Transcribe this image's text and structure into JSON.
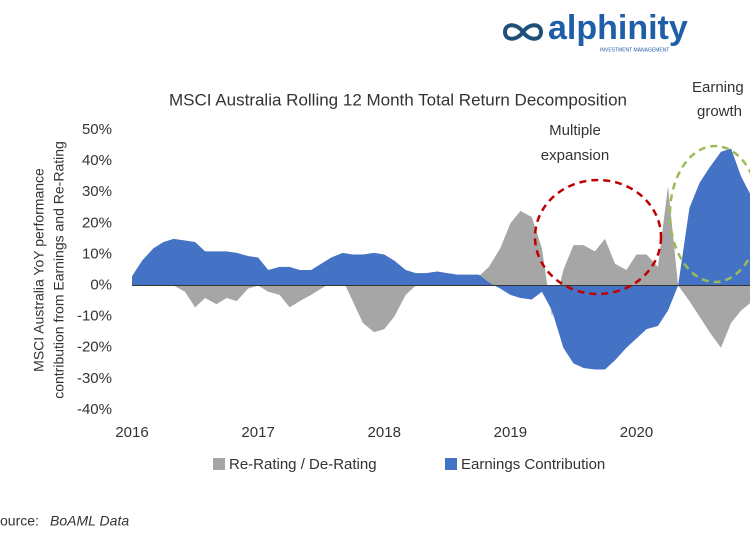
{
  "chart_data": {
    "type": "area",
    "logo": "alphinity",
    "logo_subtitle": "INVESTMENT MANAGEMENT",
    "title": "MSCI Australia Rolling 12 Month Total Return Decomposition",
    "y_label": [
      "MSCI Australia YoY performance",
      "contribution from Earnings and Re-Rating"
    ],
    "annotations": [
      {
        "lines": [
          "Multiple",
          "expansion"
        ],
        "color": "#c00000"
      },
      {
        "lines": [
          "Earning",
          "growth"
        ],
        "color": "#9bbb59"
      }
    ],
    "source_label": "ource:",
    "source": "BoAML Data",
    "x": [
      2016,
      2016.08,
      2016.17,
      2016.25,
      2016.33,
      2016.42,
      2016.5,
      2016.58,
      2016.67,
      2016.75,
      2016.83,
      2016.92,
      2017,
      2017.08,
      2017.17,
      2017.25,
      2017.33,
      2017.42,
      2017.5,
      2017.58,
      2017.67,
      2017.75,
      2017.83,
      2017.92,
      2018,
      2018.08,
      2018.17,
      2018.25,
      2018.33,
      2018.42,
      2018.5,
      2018.58,
      2018.67,
      2018.75,
      2018.83,
      2018.92,
      2019,
      2019.08,
      2019.17,
      2019.25,
      2019.33,
      2019.42,
      2019.5,
      2019.58,
      2019.67,
      2019.75,
      2019.83,
      2019.92,
      2020,
      2020.08,
      2020.17,
      2020.25,
      2020.33,
      2020.42,
      2020.5,
      2020.58,
      2020.67,
      2020.75,
      2020.83,
      2020.92
    ],
    "series": [
      {
        "name": "Re-Rating / De-Rating",
        "color": "#a6a6a6",
        "values": [
          3,
          5,
          8,
          6,
          0,
          -2,
          -7,
          -4,
          -6,
          -4,
          -5,
          -1,
          0,
          -2,
          -3,
          -7,
          -5,
          -3,
          -1,
          1,
          2,
          -5,
          -12,
          -15,
          -14,
          -10,
          -3,
          0,
          1,
          2,
          2,
          1,
          2,
          3,
          6,
          12,
          20,
          24,
          22,
          12,
          -10,
          5,
          13,
          13,
          11,
          15,
          7,
          5,
          10,
          10,
          6,
          32,
          0,
          -5,
          -10,
          -15,
          -20,
          -12,
          -8,
          -5
        ]
      },
      {
        "name": "Earnings Contribution",
        "color": "#4472c4",
        "values": [
          3,
          8,
          12,
          14,
          15,
          14.5,
          14,
          11,
          11,
          11,
          10.5,
          9.5,
          9,
          5,
          6,
          6,
          5,
          5,
          7,
          9,
          10.5,
          10,
          10,
          10.5,
          10,
          8,
          5,
          4,
          4,
          4.5,
          4,
          3.5,
          3.5,
          3.5,
          1,
          -1,
          -3,
          -4,
          -4.5,
          -2,
          -8,
          -20,
          -25,
          -26.5,
          -27,
          -27,
          -24,
          -20,
          -17,
          -14,
          -13,
          -8,
          0,
          25,
          33,
          38,
          43,
          44,
          35,
          28
        ]
      }
    ],
    "xlim": [
      2016,
      2020.9
    ],
    "xticks": [
      2016,
      2017,
      2018,
      2019,
      2020
    ],
    "ylim": [
      -40,
      50
    ],
    "yticks": [
      {
        "value": -40,
        "label": "-40%"
      },
      {
        "value": -30,
        "label": "-30%"
      },
      {
        "value": -20,
        "label": "-20%"
      },
      {
        "value": -10,
        "label": "-10%"
      },
      {
        "value": 0,
        "label": "0%"
      },
      {
        "value": 10,
        "label": "10%"
      },
      {
        "value": 20,
        "label": "20%"
      },
      {
        "value": 30,
        "label": "30%"
      },
      {
        "value": 40,
        "label": "40%"
      },
      {
        "value": 50,
        "label": "50%"
      }
    ],
    "zero_line": true
  }
}
